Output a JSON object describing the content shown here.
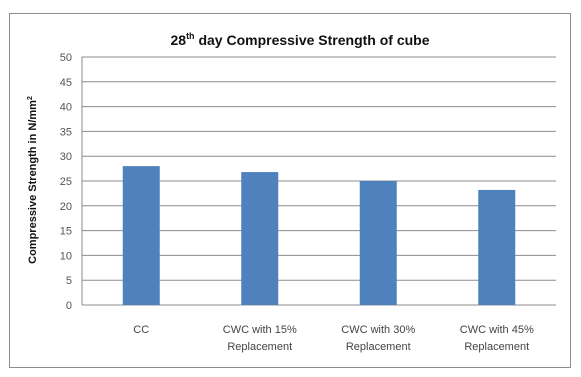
{
  "chart_data": {
    "type": "bar",
    "title": {
      "pre": "28",
      "sup": "th",
      "post": " day Compressive Strength of cube"
    },
    "ylabel": {
      "main": "Compressive Strength in N/mm",
      "sup": "2"
    },
    "xlabel": "",
    "categories": [
      [
        "CC"
      ],
      [
        "CWC with 15%",
        "Replacement"
      ],
      [
        "CWC with 30%",
        "Replacement"
      ],
      [
        "CWC with  45%",
        "Replacement"
      ]
    ],
    "values": [
      28,
      26.8,
      25,
      23.2
    ],
    "ylim": [
      0,
      50
    ],
    "yticks": [
      0,
      5,
      10,
      15,
      20,
      25,
      30,
      35,
      40,
      45,
      50
    ],
    "grid": true,
    "legend": "none",
    "colors": {
      "bar": "#4f81bd",
      "grid": "#8c8c8c",
      "axis": "#8c8c8c"
    }
  }
}
